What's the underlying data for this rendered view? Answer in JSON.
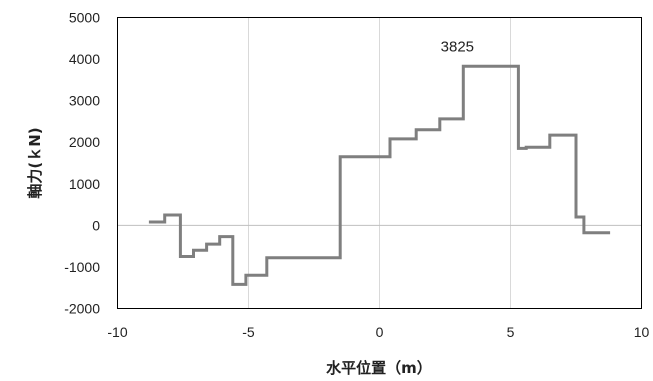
{
  "chart_data": {
    "type": "line",
    "line_style": "step",
    "xlabel": "水平位置（m）",
    "ylabel": "軸力(ｋN)",
    "xlim": [
      -10,
      10
    ],
    "ylim": [
      -2000,
      5000
    ],
    "xticks": [
      -10,
      -5,
      0,
      5,
      10
    ],
    "yticks": [
      -2000,
      -1000,
      0,
      1000,
      2000,
      3000,
      4000,
      5000
    ],
    "x_tick_labels": [
      "-10",
      "-5",
      "0",
      "5",
      "10"
    ],
    "y_tick_labels": [
      "-2000",
      "-1000",
      "0",
      "1000",
      "2000",
      "3000",
      "4000",
      "5000"
    ],
    "grid": "vertical",
    "annotation": {
      "text": "3825",
      "x": 3.2,
      "y": 3825
    },
    "series": [
      {
        "color": "#7f7f7f",
        "x": [
          -8.8,
          -8.2,
          -8.2,
          -7.6,
          -7.6,
          -7.1,
          -7.1,
          -6.6,
          -6.6,
          -6.1,
          -6.1,
          -5.6,
          -5.6,
          -5.1,
          -5.1,
          -4.3,
          -4.3,
          -3.4,
          -3.4,
          -1.5,
          -1.5,
          0.4,
          0.4,
          1.4,
          1.4,
          2.3,
          2.3,
          3.2,
          3.2,
          5.3,
          5.3,
          5.6,
          5.6,
          6.5,
          6.5,
          7.5,
          7.5,
          7.8,
          7.8,
          8.8
        ],
        "y": [
          80,
          80,
          250,
          250,
          -750,
          -750,
          -600,
          -600,
          -450,
          -450,
          -270,
          -270,
          -1420,
          -1420,
          -1200,
          -1200,
          -780,
          -780,
          -780,
          -780,
          1650,
          1650,
          2080,
          2080,
          2300,
          2300,
          2560,
          2560,
          3825,
          3825,
          1850,
          1850,
          1880,
          1880,
          2170,
          2170,
          200,
          200,
          -180,
          -180
        ]
      }
    ]
  }
}
